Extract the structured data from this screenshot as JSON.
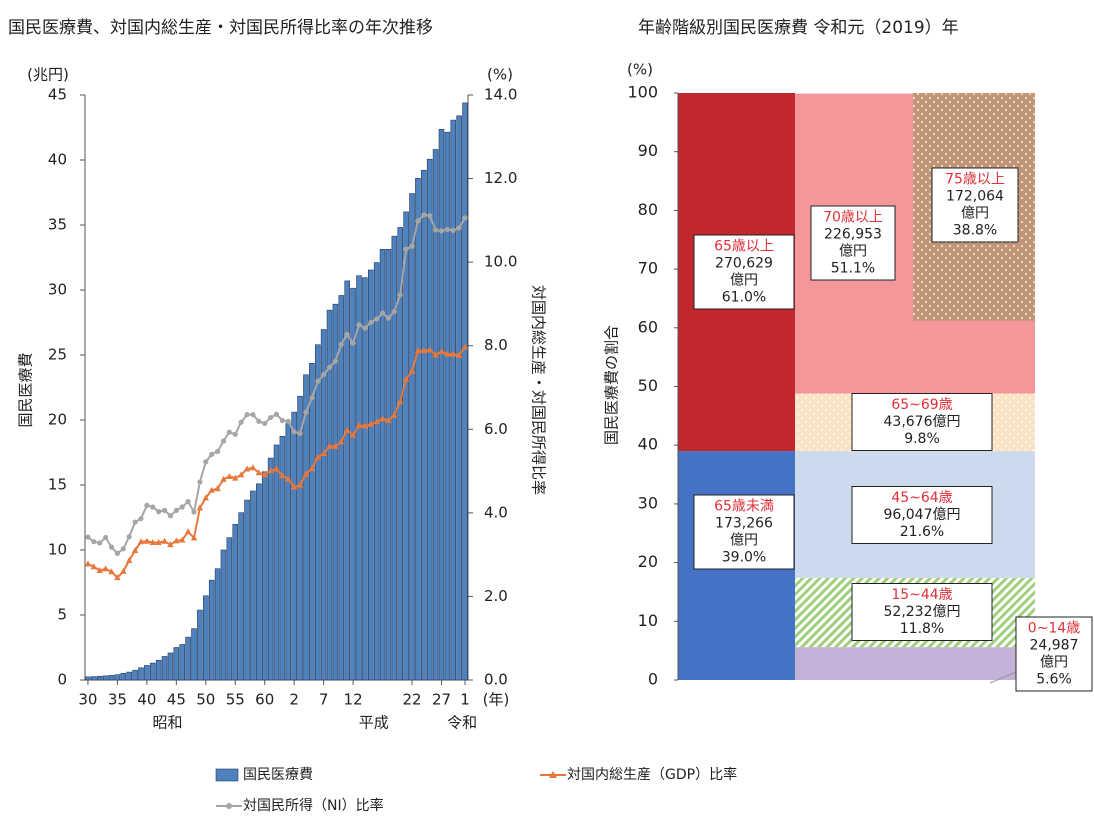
{
  "chart_data": [
    {
      "type": "bar_line",
      "title": "国民医療費、対国内総生産・対国民所得比率の年次推移",
      "y_unit": "(兆円)",
      "y2_unit": "(%)",
      "x_unit": "(年)",
      "ylabel": "国民医療費",
      "y2label": "対国内総生産・対国民所得比率",
      "categories": [
        "30",
        null,
        null,
        null,
        null,
        "35",
        null,
        null,
        null,
        null,
        "40",
        null,
        null,
        null,
        null,
        "45",
        null,
        null,
        null,
        null,
        "50",
        null,
        null,
        null,
        null,
        "55",
        null,
        null,
        null,
        null,
        "60",
        null,
        null,
        null,
        null,
        "2",
        null,
        null,
        null,
        null,
        "7",
        null,
        null,
        null,
        null,
        "12",
        null,
        null,
        null,
        null,
        null,
        null,
        null,
        null,
        null,
        "22",
        null,
        null,
        null,
        null,
        "27",
        null,
        null,
        null,
        "1"
      ],
      "eras": [
        "昭和",
        "平成",
        "令和"
      ],
      "ylim": [
        0,
        45
      ],
      "yticks": [
        0,
        5,
        10,
        15,
        20,
        25,
        30,
        35,
        40,
        45
      ],
      "y2lim": [
        0,
        14
      ],
      "y2ticks": [
        {
          "value": 0,
          "label": "0.0"
        },
        {
          "value": 2,
          "label": "2.0"
        },
        {
          "value": 4,
          "label": "4.0"
        },
        {
          "value": 6,
          "label": "6.0"
        },
        {
          "value": 8,
          "label": "8.0"
        },
        {
          "value": 10,
          "label": "10.0"
        },
        {
          "value": 12,
          "label": "12.0"
        },
        {
          "value": 14,
          "label": "14.0"
        }
      ],
      "series": [
        {
          "name": "国民医療費",
          "type": "bar",
          "color": "#4f81bd",
          "values": [
            0.24,
            0.26,
            0.29,
            0.32,
            0.36,
            0.41,
            0.51,
            0.61,
            0.75,
            0.94,
            1.12,
            1.3,
            1.52,
            1.81,
            2.08,
            2.5,
            2.73,
            3.3,
            3.95,
            5.38,
            6.48,
            7.68,
            8.56,
            10.0,
            10.95,
            11.98,
            12.87,
            13.84,
            14.54,
            15.09,
            16.02,
            17.07,
            18.08,
            18.75,
            19.73,
            20.61,
            21.83,
            23.48,
            24.36,
            25.79,
            26.96,
            28.45,
            28.91,
            29.58,
            30.7,
            30.14,
            31.1,
            30.95,
            31.54,
            32.11,
            33.13,
            33.13,
            34.14,
            34.81,
            36.01,
            37.42,
            38.59,
            39.21,
            40.06,
            40.81,
            42.36,
            42.14,
            43.07,
            43.4,
            44.39
          ]
        },
        {
          "name": "対国内総生産（GDP）比率",
          "type": "line",
          "axis": "y2",
          "marker": "triangle",
          "color": "#e8773a",
          "values": [
            2.78,
            2.71,
            2.62,
            2.66,
            2.59,
            2.45,
            2.6,
            2.86,
            3.1,
            3.31,
            3.32,
            3.29,
            3.29,
            3.32,
            3.24,
            3.33,
            3.35,
            3.55,
            3.4,
            4.12,
            4.36,
            4.54,
            4.58,
            4.8,
            4.87,
            4.83,
            4.91,
            5.05,
            5.08,
            4.96,
            4.91,
            5.01,
            5.05,
            4.89,
            4.81,
            4.62,
            4.66,
            4.93,
            5.06,
            5.33,
            5.42,
            5.59,
            5.59,
            5.7,
            5.98,
            5.86,
            6.09,
            6.08,
            6.12,
            6.18,
            6.25,
            6.21,
            6.34,
            6.67,
            7.2,
            7.39,
            7.88,
            7.88,
            7.9,
            7.78,
            7.86,
            7.8,
            7.8,
            7.77,
            7.97
          ]
        },
        {
          "name": "対国民所得（NI）比率",
          "type": "line",
          "axis": "y2",
          "marker": "circle",
          "color": "#a6a6a6",
          "values": [
            3.42,
            3.31,
            3.28,
            3.41,
            3.18,
            3.03,
            3.14,
            3.43,
            3.78,
            3.86,
            4.18,
            4.14,
            4.03,
            4.06,
            3.93,
            4.06,
            4.14,
            4.27,
            4.02,
            4.74,
            5.22,
            5.4,
            5.47,
            5.72,
            5.93,
            5.88,
            6.17,
            6.35,
            6.35,
            6.19,
            6.14,
            6.28,
            6.36,
            6.21,
            6.19,
            5.94,
            5.9,
            6.41,
            6.75,
            7.15,
            7.31,
            7.48,
            7.63,
            8.03,
            8.27,
            8.06,
            8.5,
            8.42,
            8.56,
            8.64,
            8.78,
            8.66,
            8.82,
            9.22,
            10.31,
            10.38,
            10.99,
            11.13,
            11.11,
            10.77,
            10.75,
            10.78,
            10.76,
            10.82,
            11.06
          ]
        }
      ]
    },
    {
      "type": "mekko",
      "title": "年齢階級別国民医療費 令和元（2019）年",
      "y_unit": "(%)",
      "ylabel": "国民医療費の割合",
      "ylim": [
        0,
        100
      ],
      "yticks": [
        0,
        10,
        20,
        30,
        40,
        50,
        60,
        70,
        80,
        90,
        100
      ],
      "amount_unit": "億円",
      "columns": [
        {
          "segments": [
            {
              "name": "65歳未満",
              "value": 39.0,
              "value_label": "39.0%",
              "amount": 173266,
              "amount_label": "173,266",
              "color": "#4472c4"
            },
            {
              "name": "65歳以上",
              "value": 61.0,
              "value_label": "61.0%",
              "amount": 270629,
              "amount_label": "270,629",
              "color": "#c0282d"
            }
          ]
        },
        {
          "segments": [
            {
              "name": "0~14歳",
              "value": 5.6,
              "value_label": "5.6%",
              "amount": 24987,
              "amount_label": "24,987",
              "color": "#c3b1d8"
            },
            {
              "name": "15~44歳",
              "value": 11.8,
              "value_label": "11.8%",
              "amount": 52232,
              "amount_label": "52,232",
              "color": "#9fcf7a",
              "pattern": "stripes"
            },
            {
              "name": "45~64歳",
              "value": 21.6,
              "value_label": "21.6%",
              "amount": 96047,
              "amount_label": "96,047",
              "color": "#cdd9ec"
            },
            {
              "name": "65~69歳",
              "value": 9.8,
              "value_label": "9.8%",
              "amount": 43676,
              "amount_label": "43,676",
              "color": "#fae3c5",
              "pattern": "dots"
            },
            {
              "name": "70歳以上",
              "value": 51.1,
              "value_label": "51.1%",
              "amount": 226953,
              "amount_label": "226,953",
              "color": "#f4979a"
            }
          ]
        },
        {
          "segments": [
            {
              "name": "75歳以上",
              "value": 38.8,
              "value_label": "38.8%",
              "amount": 172064,
              "amount_label": "172,064",
              "color": "#c09676",
              "pattern": "dots"
            }
          ]
        }
      ]
    }
  ]
}
